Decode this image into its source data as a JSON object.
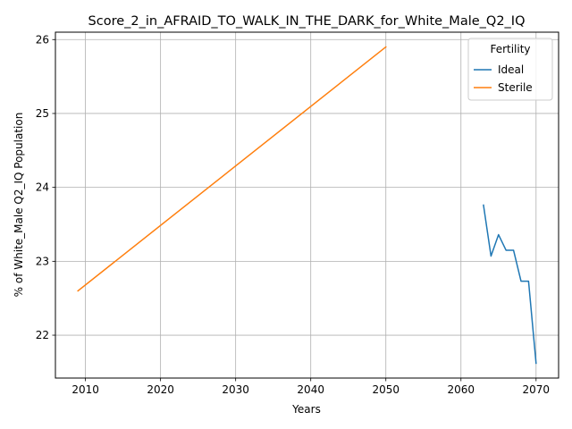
{
  "chart_data": {
    "type": "line",
    "title": "Score_2_in_AFRAID_TO_WALK_IN_THE_DARK_for_White_Male_Q2_IQ",
    "xlabel": "Years",
    "ylabel": "% of White_Male Q2_IQ Population",
    "xlim": [
      2006,
      2073
    ],
    "ylim": [
      21.42,
      26.1
    ],
    "xticks": [
      2010,
      2020,
      2030,
      2040,
      2050,
      2060,
      2070
    ],
    "yticks": [
      22,
      23,
      24,
      25,
      26
    ],
    "grid": true,
    "legend": {
      "title": "Fertility",
      "placement": "top-right"
    },
    "series": [
      {
        "name": "Ideal",
        "color": "#1f77b4",
        "x": [
          2063,
          2064,
          2065,
          2066,
          2067,
          2068,
          2069,
          2070
        ],
        "y": [
          23.76,
          23.07,
          23.36,
          23.15,
          23.15,
          22.73,
          22.73,
          21.62
        ]
      },
      {
        "name": "Sterile",
        "color": "#ff7f0e",
        "x": [
          2009,
          2050
        ],
        "y": [
          22.6,
          25.9
        ]
      }
    ]
  }
}
